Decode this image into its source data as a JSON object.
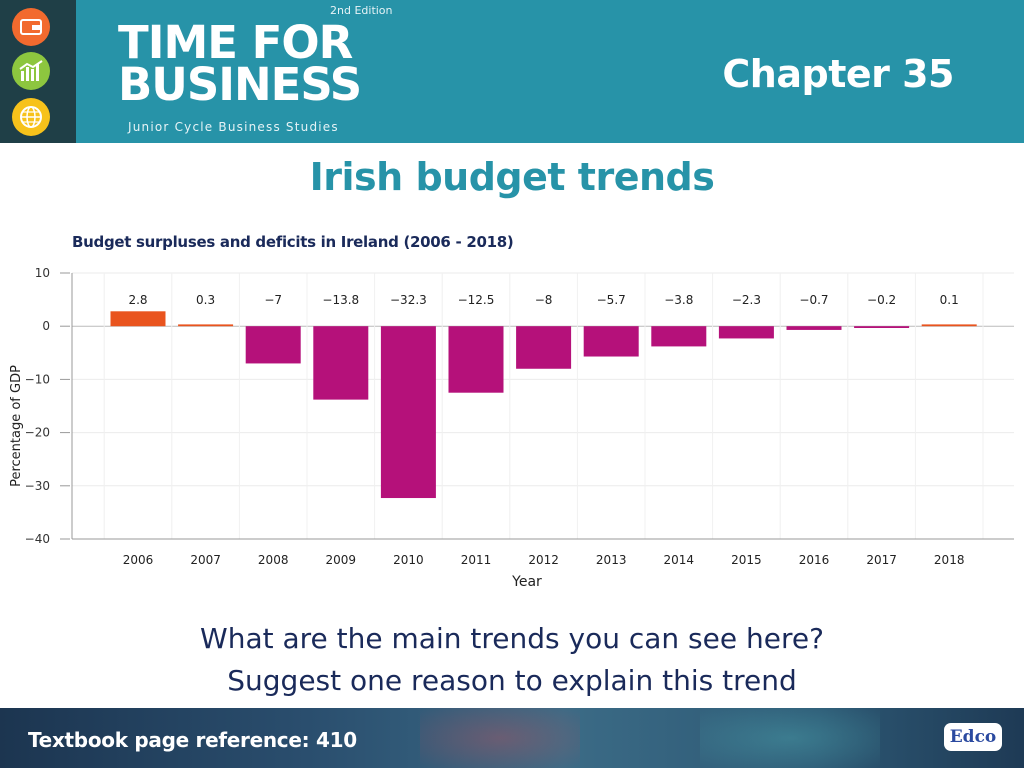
{
  "header": {
    "edition": "2nd Edition",
    "brand_line1": "TIME FOR",
    "brand_line2": "BUSINESS",
    "brand_sub": "Junior Cycle Business Studies",
    "chapter": "Chapter 35",
    "strip_icons": [
      {
        "name": "wallet-icon",
        "color": "#f26a2e"
      },
      {
        "name": "chart-icon",
        "color": "#8dc63f"
      },
      {
        "name": "globe-icon",
        "color": "#f7c21b"
      }
    ]
  },
  "title": "Irish budget trends",
  "chart_data": {
    "type": "bar",
    "title": "Budget surpluses and deficits in Ireland (2006 - 2018)",
    "xlabel": "Year",
    "ylabel": "Percentage of GDP",
    "categories": [
      "2006",
      "2007",
      "2008",
      "2009",
      "2010",
      "2011",
      "2012",
      "2013",
      "2014",
      "2015",
      "2016",
      "2017",
      "2018"
    ],
    "values": [
      2.8,
      0.3,
      -7,
      -13.8,
      -32.3,
      -12.5,
      -8,
      -5.7,
      -3.8,
      -2.3,
      -0.7,
      -0.2,
      0.1
    ],
    "value_labels": [
      "2.8",
      "0.3",
      "−7",
      "−13.8",
      "−32.3",
      "−12.5",
      "−8",
      "−5.7",
      "−3.8",
      "−2.3",
      "−0.7",
      "−0.2",
      "0.1"
    ],
    "yticks": [
      10,
      0,
      -10,
      -20,
      -30,
      -40
    ],
    "ytick_labels": [
      "10",
      "0",
      "−10",
      "−20",
      "−30",
      "−40"
    ],
    "ylim": [
      -40,
      10
    ],
    "grid": true,
    "colors": {
      "surplus": "#e9541e",
      "deficit": "#b5117a"
    }
  },
  "question": {
    "line1": "What are the main trends you can see here?",
    "line2": "Suggest one reason  to explain this trend"
  },
  "footer": {
    "reference": "Textbook page reference: 410",
    "logo": "Edco"
  }
}
